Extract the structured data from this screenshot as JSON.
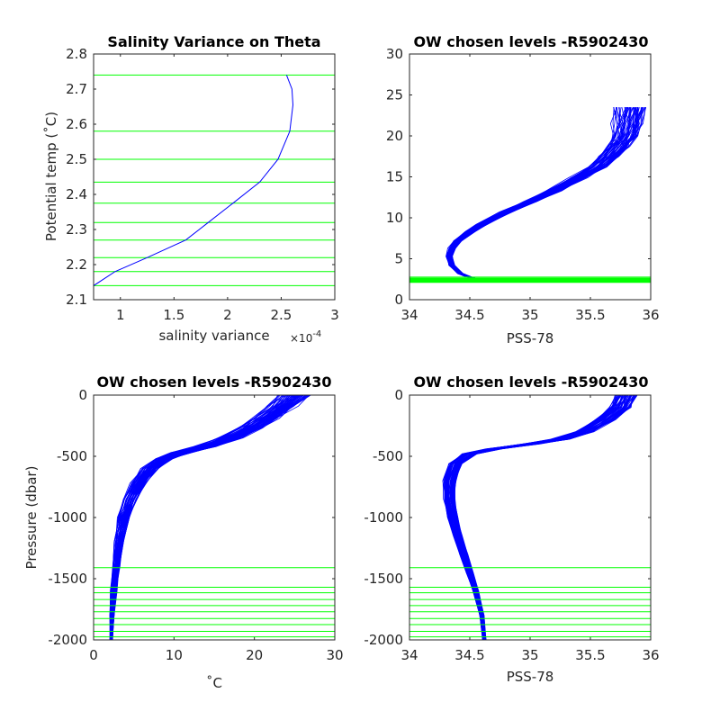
{
  "colors": {
    "profile": "#0000ff",
    "level": "#00ff00",
    "axis": "#262626"
  },
  "chart_data": [
    {
      "id": "sv",
      "type": "line",
      "title": "Salinity Variance on Theta",
      "xlabel": "salinity variance",
      "x_exponent_label": "×10",
      "x_exponent_power": "-4",
      "ylabel": "Potential temp (˚C)",
      "xlim": [
        0.75,
        3
      ],
      "ylim": [
        2.1,
        2.8
      ],
      "xticks": [
        1,
        1.5,
        2,
        2.5,
        3
      ],
      "xtick_labels": [
        "1",
        "1.5",
        "2",
        "2.5",
        "3"
      ],
      "yticks": [
        2.1,
        2.2,
        2.3,
        2.4,
        2.5,
        2.6,
        2.7,
        2.8
      ],
      "ytick_labels": [
        "2.1",
        "2.2",
        "2.3",
        "2.4",
        "2.5",
        "2.6",
        "2.7",
        "2.8"
      ],
      "grid": false,
      "series": [
        {
          "x": [
            0.75,
            0.95,
            1.25,
            1.61,
            1.82,
            2.05,
            2.3,
            2.47,
            2.58,
            2.61,
            2.6,
            2.55
          ],
          "y": [
            2.14,
            2.18,
            2.22,
            2.27,
            2.32,
            2.375,
            2.435,
            2.5,
            2.58,
            2.655,
            2.7,
            2.74
          ]
        }
      ],
      "levels": {
        "axis": "y",
        "values": [
          2.14,
          2.18,
          2.22,
          2.27,
          2.32,
          2.375,
          2.435,
          2.5,
          2.58,
          2.74
        ]
      }
    },
    {
      "id": "ts",
      "type": "line",
      "title": "OW chosen levels -R5902430",
      "xlabel": "PSS-78",
      "ylabel": "",
      "xlim": [
        34,
        36
      ],
      "ylim": [
        0,
        30
      ],
      "xticks": [
        34,
        34.5,
        35,
        35.5,
        36
      ],
      "xtick_labels": [
        "34",
        "34.5",
        "35",
        "35.5",
        "36"
      ],
      "yticks": [
        0,
        5,
        10,
        15,
        20,
        25,
        30
      ],
      "ytick_labels": [
        "0",
        "5",
        "10",
        "15",
        "20",
        "25",
        "30"
      ],
      "grid": false,
      "profile_count": 60,
      "representative_profile": {
        "salinity": [
          34.62,
          34.52,
          34.42,
          34.35,
          34.33,
          34.35,
          34.4,
          34.5,
          34.6,
          34.8,
          35.0,
          35.2,
          35.4,
          35.55,
          35.65,
          35.72,
          35.78,
          35.8,
          35.82
        ],
        "theta": [
          2.2,
          2.6,
          3.2,
          4.2,
          5.3,
          6.3,
          7.2,
          8.3,
          9.2,
          10.7,
          12.0,
          13.3,
          14.9,
          16.2,
          17.5,
          18.7,
          20.0,
          21.5,
          23.5
        ]
      },
      "levels": {
        "axis": "y",
        "values": [
          2.14,
          2.18,
          2.22,
          2.27,
          2.32,
          2.375,
          2.435,
          2.5,
          2.58,
          2.74
        ]
      }
    },
    {
      "id": "tp",
      "type": "line",
      "title": "OW chosen levels -R5902430",
      "xlabel": "˚C",
      "ylabel": "Pressure (dbar)",
      "xlim": [
        0,
        30
      ],
      "ylim": [
        -2000,
        0
      ],
      "xticks": [
        0,
        10,
        20,
        30
      ],
      "xtick_labels": [
        "0",
        "10",
        "20",
        "30"
      ],
      "yticks": [
        -2000,
        -1500,
        -1000,
        -500,
        0
      ],
      "ytick_labels": [
        "-2000",
        "-1500",
        "-1000",
        "-500",
        "0"
      ],
      "grid": false,
      "profile_count": 60,
      "representative_profile": {
        "temperature": [
          2.2,
          2.3,
          2.5,
          2.8,
          3.2,
          3.8,
          4.6,
          5.6,
          7.0,
          8.8,
          11.0,
          14.0,
          17.0,
          19.5,
          21.5,
          23.5,
          25.0
        ],
        "pressure": [
          -2000,
          -1800,
          -1600,
          -1400,
          -1200,
          -1000,
          -850,
          -720,
          -600,
          -520,
          -470,
          -420,
          -350,
          -270,
          -190,
          -90,
          0
        ]
      },
      "levels": {
        "axis": "y",
        "values": [
          -1975,
          -1930,
          -1875,
          -1825,
          -1770,
          -1720,
          -1670,
          -1615,
          -1570,
          -1410
        ]
      }
    },
    {
      "id": "sp",
      "type": "line",
      "title": "OW chosen levels -R5902430",
      "xlabel": "PSS-78",
      "ylabel": "",
      "xlim": [
        34,
        36
      ],
      "ylim": [
        -2000,
        0
      ],
      "xticks": [
        34,
        34.5,
        35,
        35.5,
        36
      ],
      "xtick_labels": [
        "34",
        "34.5",
        "35",
        "35.5",
        "36"
      ],
      "yticks": [
        -2000,
        -1500,
        -1000,
        -500,
        0
      ],
      "ytick_labels": [
        "-2000",
        "-1500",
        "-1000",
        "-500",
        "0"
      ],
      "grid": false,
      "profile_count": 60,
      "representative_profile": {
        "salinity": [
          34.62,
          34.6,
          34.55,
          34.5,
          34.45,
          34.4,
          34.36,
          34.33,
          34.33,
          34.38,
          34.5,
          34.7,
          35.0,
          35.25,
          35.45,
          35.62,
          35.75,
          35.8
        ],
        "pressure": [
          -2000,
          -1800,
          -1600,
          -1450,
          -1300,
          -1150,
          -1000,
          -850,
          -700,
          -560,
          -480,
          -440,
          -400,
          -360,
          -300,
          -200,
          -100,
          0
        ]
      },
      "levels": {
        "axis": "y",
        "values": [
          -1975,
          -1930,
          -1875,
          -1825,
          -1770,
          -1720,
          -1670,
          -1615,
          -1570,
          -1410
        ]
      }
    }
  ]
}
